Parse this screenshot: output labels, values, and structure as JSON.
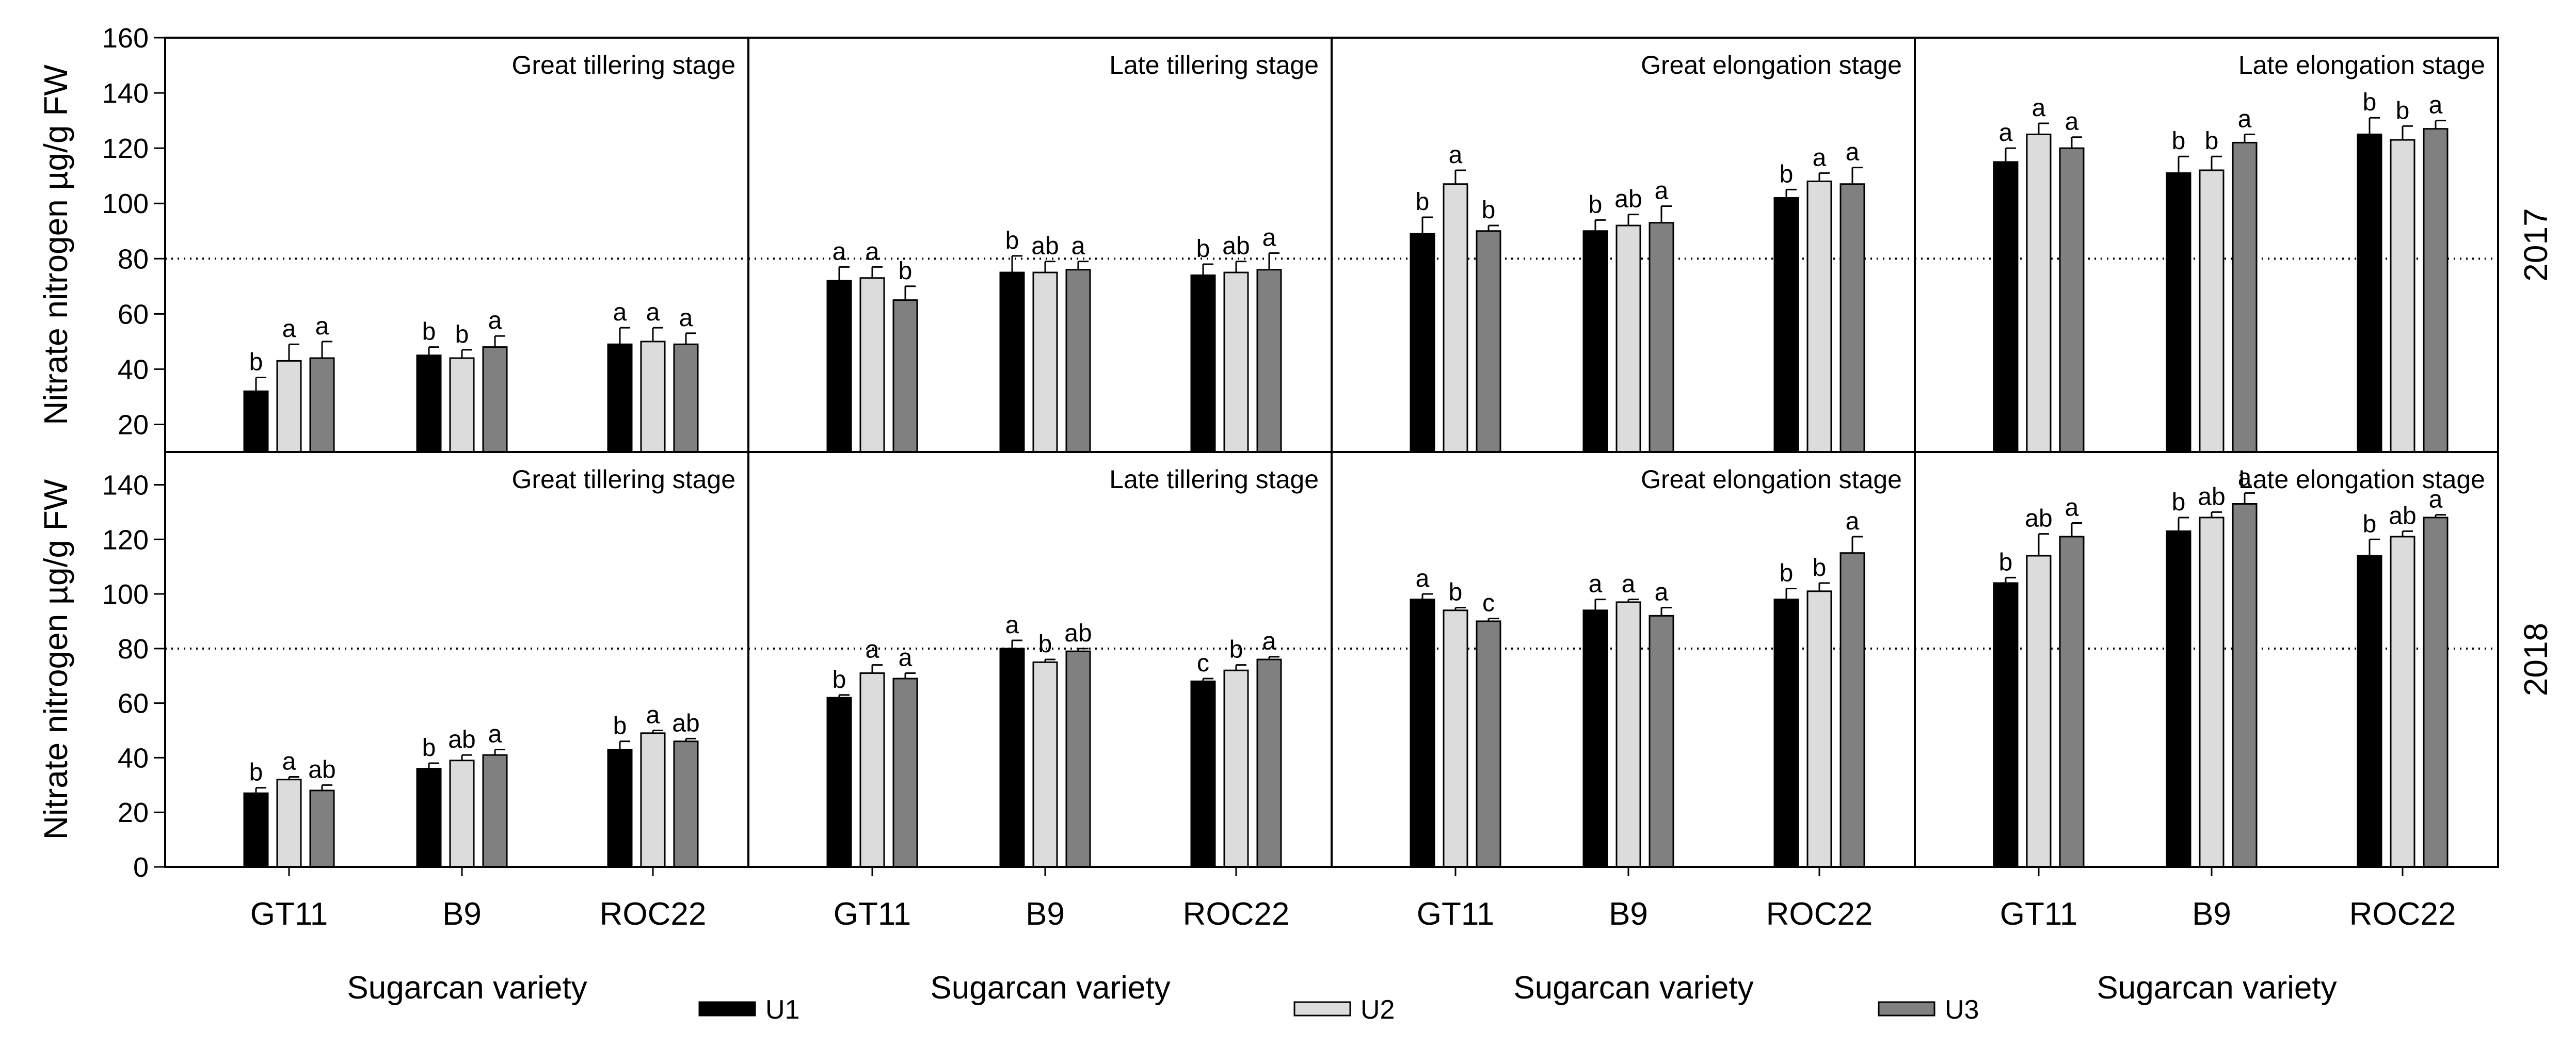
{
  "chart_data": {
    "type": "bar",
    "title": "",
    "ylabel": "Nitrate nitrogen µg/g FW",
    "xlabel": "Sugarcan variety",
    "categories": [
      "GT11",
      "B9",
      "ROC22"
    ],
    "legend": [
      "U1",
      "U2",
      "U3"
    ],
    "colors": {
      "U1": "#000000",
      "U2": "#dcdcdc",
      "U3": "#808080"
    },
    "reference_line": 80,
    "rows": [
      {
        "year": "2017",
        "ylim": [
          10,
          160
        ],
        "yticks": [
          20,
          40,
          60,
          80,
          100,
          120,
          140,
          160
        ],
        "panels": [
          {
            "stage": "Great tillering stage",
            "series": [
              {
                "name": "U1",
                "values": [
                  32,
                  45,
                  49
                ],
                "errors": [
                  5,
                  3,
                  6
                ],
                "labels": [
                  "b",
                  "b",
                  "a"
                ]
              },
              {
                "name": "U2",
                "values": [
                  43,
                  44,
                  50
                ],
                "errors": [
                  6,
                  3,
                  5
                ],
                "labels": [
                  "a",
                  "b",
                  "a"
                ]
              },
              {
                "name": "U3",
                "values": [
                  44,
                  48,
                  49
                ],
                "errors": [
                  6,
                  4,
                  4
                ],
                "labels": [
                  "a",
                  "a",
                  "a"
                ]
              }
            ]
          },
          {
            "stage": "Late tillering stage",
            "series": [
              {
                "name": "U1",
                "values": [
                  72,
                  75,
                  74
                ],
                "errors": [
                  5,
                  6,
                  4
                ],
                "labels": [
                  "a",
                  "b",
                  "b"
                ]
              },
              {
                "name": "U2",
                "values": [
                  73,
                  75,
                  75
                ],
                "errors": [
                  4,
                  4,
                  4
                ],
                "labels": [
                  "a",
                  "ab",
                  "ab"
                ]
              },
              {
                "name": "U3",
                "values": [
                  65,
                  76,
                  76
                ],
                "errors": [
                  5,
                  3,
                  6
                ],
                "labels": [
                  "b",
                  "a",
                  "a"
                ]
              }
            ]
          },
          {
            "stage": "Great elongation stage",
            "series": [
              {
                "name": "U1",
                "values": [
                  89,
                  90,
                  102
                ],
                "errors": [
                  6,
                  4,
                  3
                ],
                "labels": [
                  "b",
                  "b",
                  "b"
                ]
              },
              {
                "name": "U2",
                "values": [
                  107,
                  92,
                  108
                ],
                "errors": [
                  5,
                  4,
                  3
                ],
                "labels": [
                  "a",
                  "ab",
                  "a"
                ]
              },
              {
                "name": "U3",
                "values": [
                  90,
                  93,
                  107
                ],
                "errors": [
                  2,
                  6,
                  6
                ],
                "labels": [
                  "b",
                  "a",
                  "a"
                ]
              }
            ]
          },
          {
            "stage": "Late elongation stage",
            "series": [
              {
                "name": "U1",
                "values": [
                  115,
                  111,
                  125
                ],
                "errors": [
                  5,
                  6,
                  6
                ],
                "labels": [
                  "a",
                  "b",
                  "b"
                ]
              },
              {
                "name": "U2",
                "values": [
                  125,
                  112,
                  123
                ],
                "errors": [
                  4,
                  5,
                  5
                ],
                "labels": [
                  "a",
                  "b",
                  "b"
                ]
              },
              {
                "name": "U3",
                "values": [
                  120,
                  122,
                  127
                ],
                "errors": [
                  4,
                  3,
                  3
                ],
                "labels": [
                  "a",
                  "a",
                  "a"
                ]
              }
            ]
          }
        ]
      },
      {
        "year": "2018",
        "ylim": [
          0,
          152
        ],
        "yticks": [
          0,
          20,
          40,
          60,
          80,
          100,
          120,
          140
        ],
        "panels": [
          {
            "stage": "Great tillering stage",
            "series": [
              {
                "name": "U1",
                "values": [
                  27,
                  36,
                  43
                ],
                "errors": [
                  2,
                  2,
                  3
                ],
                "labels": [
                  "b",
                  "b",
                  "b"
                ]
              },
              {
                "name": "U2",
                "values": [
                  32,
                  39,
                  49
                ],
                "errors": [
                  1,
                  2,
                  1
                ],
                "labels": [
                  "a",
                  "ab",
                  "a"
                ]
              },
              {
                "name": "U3",
                "values": [
                  28,
                  41,
                  46
                ],
                "errors": [
                  2,
                  2,
                  1
                ],
                "labels": [
                  "ab",
                  "a",
                  "ab"
                ]
              }
            ]
          },
          {
            "stage": "Late tillering stage",
            "series": [
              {
                "name": "U1",
                "values": [
                  62,
                  80,
                  68
                ],
                "errors": [
                  1,
                  3,
                  1
                ],
                "labels": [
                  "b",
                  "a",
                  "c"
                ]
              },
              {
                "name": "U2",
                "values": [
                  71,
                  75,
                  72
                ],
                "errors": [
                  3,
                  1,
                  2
                ],
                "labels": [
                  "a",
                  "b",
                  "b"
                ]
              },
              {
                "name": "U3",
                "values": [
                  69,
                  79,
                  76
                ],
                "errors": [
                  2,
                  1,
                  1
                ],
                "labels": [
                  "a",
                  "ab",
                  "a"
                ]
              }
            ]
          },
          {
            "stage": "Great elongation stage",
            "series": [
              {
                "name": "U1",
                "values": [
                  98,
                  94,
                  98
                ],
                "errors": [
                  2,
                  4,
                  4
                ],
                "labels": [
                  "a",
                  "a",
                  "b"
                ]
              },
              {
                "name": "U2",
                "values": [
                  94,
                  97,
                  101
                ],
                "errors": [
                  1,
                  1,
                  3
                ],
                "labels": [
                  "b",
                  "a",
                  "b"
                ]
              },
              {
                "name": "U3",
                "values": [
                  90,
                  92,
                  115
                ],
                "errors": [
                  1,
                  3,
                  6
                ],
                "labels": [
                  "c",
                  "a",
                  "a"
                ]
              }
            ]
          },
          {
            "stage": "Late elongation stage",
            "series": [
              {
                "name": "U1",
                "values": [
                  104,
                  123,
                  114
                ],
                "errors": [
                  2,
                  5,
                  6
                ],
                "labels": [
                  "b",
                  "b",
                  "b"
                ]
              },
              {
                "name": "U2",
                "values": [
                  114,
                  128,
                  121
                ],
                "errors": [
                  8,
                  2,
                  2
                ],
                "labels": [
                  "ab",
                  "ab",
                  "ab"
                ]
              },
              {
                "name": "U3",
                "values": [
                  121,
                  133,
                  128
                ],
                "errors": [
                  5,
                  4,
                  1
                ],
                "labels": [
                  "a",
                  "a",
                  "a"
                ]
              }
            ]
          }
        ]
      }
    ]
  }
}
